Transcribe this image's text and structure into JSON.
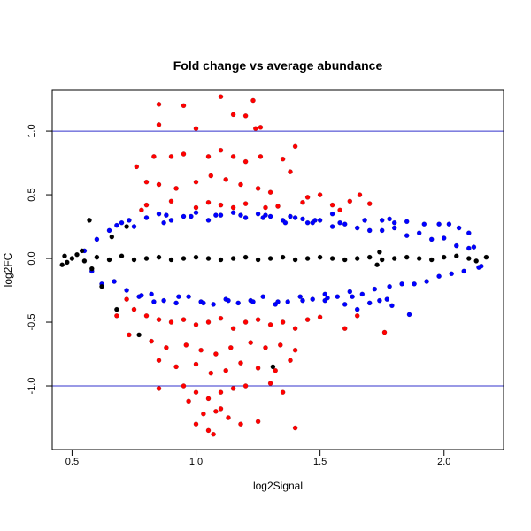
{
  "chart_data": {
    "type": "scatter",
    "title": "Fold change vs average abundance",
    "xlabel": "log2Signal",
    "ylabel": "log2FC",
    "xlim": [
      0.42,
      2.24
    ],
    "ylim": [
      -1.5,
      1.32
    ],
    "x_ticks": [
      {
        "value": 0.5,
        "label": "0.5"
      },
      {
        "value": 1.0,
        "label": "1.0"
      },
      {
        "value": 1.5,
        "label": "1.5"
      },
      {
        "value": 2.0,
        "label": "2.0"
      }
    ],
    "y_ticks": [
      {
        "value": -1.0,
        "label": "-1.0"
      },
      {
        "value": -0.5,
        "label": "-0.5"
      },
      {
        "value": 0.0,
        "label": "0.0"
      },
      {
        "value": 0.5,
        "label": "0.5"
      },
      {
        "value": 1.0,
        "label": "1.0"
      }
    ],
    "reference_lines": [
      {
        "axis": "y",
        "value": 1.0,
        "color": "#3333cc"
      },
      {
        "axis": "y",
        "value": -1.0,
        "color": "#3333cc"
      }
    ],
    "grid": false,
    "legend": "none",
    "series": [
      {
        "color": "#0000ff",
        "points": [
          [
            0.55,
            0.06
          ],
          [
            0.58,
            -0.1
          ],
          [
            0.6,
            0.15
          ],
          [
            0.62,
            -0.2
          ],
          [
            0.65,
            0.22
          ],
          [
            0.67,
            -0.18
          ],
          [
            0.7,
            0.28
          ],
          [
            0.72,
            -0.25
          ],
          [
            0.75,
            0.25
          ],
          [
            0.77,
            -0.3
          ],
          [
            0.8,
            0.32
          ],
          [
            0.82,
            -0.28
          ],
          [
            0.85,
            0.35
          ],
          [
            0.87,
            -0.33
          ],
          [
            0.9,
            0.3
          ],
          [
            0.92,
            -0.35
          ],
          [
            0.95,
            0.33
          ],
          [
            0.97,
            -0.3
          ],
          [
            1.0,
            0.36
          ],
          [
            1.02,
            -0.34
          ],
          [
            1.05,
            0.3
          ],
          [
            1.07,
            -0.36
          ],
          [
            1.1,
            0.34
          ],
          [
            1.12,
            -0.32
          ],
          [
            1.15,
            0.36
          ],
          [
            1.17,
            -0.35
          ],
          [
            1.2,
            0.32
          ],
          [
            1.22,
            -0.33
          ],
          [
            1.25,
            0.35
          ],
          [
            1.27,
            -0.3
          ],
          [
            1.3,
            0.33
          ],
          [
            1.32,
            -0.36
          ],
          [
            1.35,
            0.3
          ],
          [
            1.37,
            -0.34
          ],
          [
            1.4,
            0.32
          ],
          [
            1.42,
            -0.3
          ],
          [
            1.45,
            0.28
          ],
          [
            1.47,
            -0.32
          ],
          [
            1.5,
            0.3
          ],
          [
            1.52,
            -0.28
          ],
          [
            1.55,
            0.25
          ],
          [
            1.57,
            -0.3
          ],
          [
            1.6,
            0.27
          ],
          [
            1.62,
            -0.26
          ],
          [
            1.65,
            0.24
          ],
          [
            1.67,
            -0.28
          ],
          [
            1.7,
            0.22
          ],
          [
            1.72,
            -0.24
          ],
          [
            1.75,
            0.22
          ],
          [
            1.78,
            -0.22
          ],
          [
            1.8,
            0.24
          ],
          [
            1.83,
            -0.2
          ],
          [
            1.85,
            0.18
          ],
          [
            1.88,
            -0.2
          ],
          [
            1.9,
            0.2
          ],
          [
            1.93,
            -0.18
          ],
          [
            1.95,
            0.15
          ],
          [
            1.98,
            -0.14
          ],
          [
            2.0,
            0.16
          ],
          [
            2.03,
            -0.12
          ],
          [
            2.05,
            0.1
          ],
          [
            2.08,
            -0.1
          ],
          [
            2.1,
            0.08
          ],
          [
            2.15,
            -0.06
          ],
          [
            1.36,
            0.28
          ],
          [
            1.86,
            -0.44
          ],
          [
            1.79,
            -0.37
          ],
          [
            1.55,
            0.35
          ],
          [
            1.68,
            0.3
          ],
          [
            1.75,
            0.3
          ],
          [
            1.8,
            0.28
          ],
          [
            1.78,
            0.31
          ],
          [
            1.85,
            0.29
          ],
          [
            1.92,
            0.27
          ],
          [
            1.98,
            0.27
          ],
          [
            2.02,
            0.27
          ],
          [
            2.06,
            0.24
          ],
          [
            2.1,
            0.2
          ],
          [
            2.12,
            0.09
          ],
          [
            2.14,
            -0.07
          ],
          [
            1.7,
            -0.35
          ],
          [
            1.74,
            -0.33
          ],
          [
            1.77,
            -0.32
          ],
          [
            1.6,
            -0.36
          ],
          [
            1.65,
            -0.4
          ],
          [
            1.52,
            -0.33
          ],
          [
            0.68,
            0.26
          ],
          [
            0.73,
            0.3
          ],
          [
            0.78,
            -0.29
          ],
          [
            0.83,
            -0.34
          ],
          [
            0.88,
            0.34
          ],
          [
            0.93,
            -0.3
          ],
          [
            0.98,
            0.33
          ],
          [
            1.03,
            -0.35
          ],
          [
            1.08,
            0.34
          ],
          [
            1.13,
            -0.33
          ],
          [
            1.18,
            0.34
          ],
          [
            1.23,
            -0.34
          ],
          [
            1.28,
            0.34
          ],
          [
            1.33,
            -0.34
          ],
          [
            1.38,
            0.33
          ],
          [
            1.43,
            -0.33
          ],
          [
            1.48,
            0.3
          ],
          [
            1.53,
            -0.31
          ],
          [
            1.58,
            0.28
          ],
          [
            1.63,
            -0.3
          ],
          [
            1.43,
            0.31
          ],
          [
            1.47,
            0.28
          ],
          [
            0.87,
            0.28
          ],
          [
            1.27,
            0.32
          ]
        ]
      },
      {
        "color": "#000000",
        "points": [
          [
            0.46,
            -0.05
          ],
          [
            0.47,
            0.02
          ],
          [
            0.48,
            -0.03
          ],
          [
            0.5,
            0.0
          ],
          [
            0.52,
            0.03
          ],
          [
            0.55,
            -0.02
          ],
          [
            0.6,
            0.01
          ],
          [
            0.65,
            -0.01
          ],
          [
            0.7,
            0.02
          ],
          [
            0.75,
            -0.01
          ],
          [
            0.8,
            0.0
          ],
          [
            0.85,
            0.01
          ],
          [
            0.9,
            -0.01
          ],
          [
            0.95,
            0.0
          ],
          [
            1.0,
            0.01
          ],
          [
            1.05,
            0.0
          ],
          [
            1.1,
            -0.01
          ],
          [
            1.15,
            0.0
          ],
          [
            1.2,
            0.01
          ],
          [
            1.25,
            -0.01
          ],
          [
            1.3,
            0.0
          ],
          [
            1.35,
            0.01
          ],
          [
            1.4,
            -0.01
          ],
          [
            1.45,
            0.0
          ],
          [
            1.5,
            0.01
          ],
          [
            1.55,
            0.0
          ],
          [
            1.6,
            -0.01
          ],
          [
            1.65,
            0.0
          ],
          [
            1.7,
            0.01
          ],
          [
            1.75,
            -0.01
          ],
          [
            1.8,
            0.0
          ],
          [
            1.85,
            0.01
          ],
          [
            1.9,
            0.0
          ],
          [
            1.95,
            -0.01
          ],
          [
            2.0,
            0.01
          ],
          [
            2.05,
            0.02
          ],
          [
            2.1,
            0.0
          ],
          [
            2.13,
            -0.02
          ],
          [
            2.17,
            0.01
          ],
          [
            0.57,
            0.3
          ],
          [
            0.62,
            -0.22
          ],
          [
            0.68,
            -0.4
          ],
          [
            0.66,
            0.17
          ],
          [
            0.72,
            0.25
          ],
          [
            0.77,
            -0.6
          ],
          [
            1.31,
            -0.85
          ],
          [
            1.74,
            0.05
          ],
          [
            1.73,
            -0.05
          ],
          [
            0.54,
            0.06
          ],
          [
            0.58,
            -0.08
          ]
        ]
      },
      {
        "color": "#ff0000",
        "points": [
          [
            0.85,
            1.21
          ],
          [
            0.95,
            1.2
          ],
          [
            1.1,
            1.27
          ],
          [
            1.23,
            1.24
          ],
          [
            1.15,
            1.13
          ],
          [
            1.2,
            1.12
          ],
          [
            1.24,
            1.02
          ],
          [
            1.26,
            1.03
          ],
          [
            0.85,
            1.05
          ],
          [
            1.0,
            1.02
          ],
          [
            0.83,
            0.8
          ],
          [
            0.9,
            0.8
          ],
          [
            0.95,
            0.82
          ],
          [
            1.05,
            0.8
          ],
          [
            1.1,
            0.85
          ],
          [
            1.15,
            0.8
          ],
          [
            1.2,
            0.76
          ],
          [
            1.26,
            0.8
          ],
          [
            1.35,
            0.78
          ],
          [
            1.4,
            0.88
          ],
          [
            0.76,
            0.72
          ],
          [
            0.8,
            0.6
          ],
          [
            0.85,
            0.58
          ],
          [
            0.92,
            0.55
          ],
          [
            1.0,
            0.6
          ],
          [
            1.06,
            0.65
          ],
          [
            1.12,
            0.62
          ],
          [
            1.18,
            0.58
          ],
          [
            1.25,
            0.55
          ],
          [
            1.3,
            0.52
          ],
          [
            1.38,
            0.68
          ],
          [
            1.45,
            0.48
          ],
          [
            1.5,
            0.5
          ],
          [
            1.55,
            0.42
          ],
          [
            1.62,
            0.45
          ],
          [
            1.66,
            0.5
          ],
          [
            1.7,
            0.43
          ],
          [
            0.8,
            0.42
          ],
          [
            0.9,
            0.45
          ],
          [
            1.0,
            0.4
          ],
          [
            1.05,
            0.44
          ],
          [
            1.1,
            0.42
          ],
          [
            1.15,
            0.4
          ],
          [
            1.2,
            0.43
          ],
          [
            1.28,
            0.4
          ],
          [
            1.33,
            0.41
          ],
          [
            0.75,
            -0.4
          ],
          [
            0.8,
            -0.45
          ],
          [
            0.85,
            -0.48
          ],
          [
            0.9,
            -0.5
          ],
          [
            0.95,
            -0.48
          ],
          [
            1.0,
            -0.52
          ],
          [
            1.05,
            -0.5
          ],
          [
            1.1,
            -0.47
          ],
          [
            1.15,
            -0.55
          ],
          [
            1.2,
            -0.5
          ],
          [
            1.25,
            -0.48
          ],
          [
            1.3,
            -0.52
          ],
          [
            1.35,
            -0.5
          ],
          [
            1.4,
            -0.55
          ],
          [
            1.45,
            -0.48
          ],
          [
            1.5,
            -0.46
          ],
          [
            1.6,
            -0.55
          ],
          [
            1.65,
            -0.45
          ],
          [
            1.76,
            -0.58
          ],
          [
            0.73,
            -0.6
          ],
          [
            0.82,
            -0.65
          ],
          [
            0.88,
            -0.7
          ],
          [
            0.96,
            -0.68
          ],
          [
            1.02,
            -0.72
          ],
          [
            1.08,
            -0.75
          ],
          [
            1.14,
            -0.7
          ],
          [
            1.22,
            -0.66
          ],
          [
            1.28,
            -0.7
          ],
          [
            1.34,
            -0.68
          ],
          [
            1.4,
            -0.72
          ],
          [
            0.85,
            -0.8
          ],
          [
            0.92,
            -0.85
          ],
          [
            1.0,
            -0.83
          ],
          [
            1.06,
            -0.9
          ],
          [
            1.12,
            -0.88
          ],
          [
            1.18,
            -0.82
          ],
          [
            1.25,
            -0.86
          ],
          [
            1.32,
            -0.88
          ],
          [
            1.38,
            -0.8
          ],
          [
            0.85,
            -1.02
          ],
          [
            0.95,
            -1.0
          ],
          [
            1.0,
            -1.05
          ],
          [
            1.05,
            -1.1
          ],
          [
            1.1,
            -1.05
          ],
          [
            1.15,
            -1.02
          ],
          [
            1.2,
            -1.0
          ],
          [
            1.3,
            -0.98
          ],
          [
            1.35,
            -1.05
          ],
          [
            0.97,
            -1.12
          ],
          [
            1.03,
            -1.22
          ],
          [
            1.08,
            -1.2
          ],
          [
            1.1,
            -1.18
          ],
          [
            1.0,
            -1.3
          ],
          [
            1.05,
            -1.35
          ],
          [
            1.07,
            -1.38
          ],
          [
            1.13,
            -1.25
          ],
          [
            1.18,
            -1.3
          ],
          [
            1.25,
            -1.28
          ],
          [
            1.4,
            -1.33
          ],
          [
            0.68,
            -0.45
          ],
          [
            0.72,
            -0.32
          ],
          [
            0.78,
            0.38
          ],
          [
            1.43,
            0.44
          ],
          [
            1.58,
            0.38
          ]
        ]
      }
    ]
  }
}
